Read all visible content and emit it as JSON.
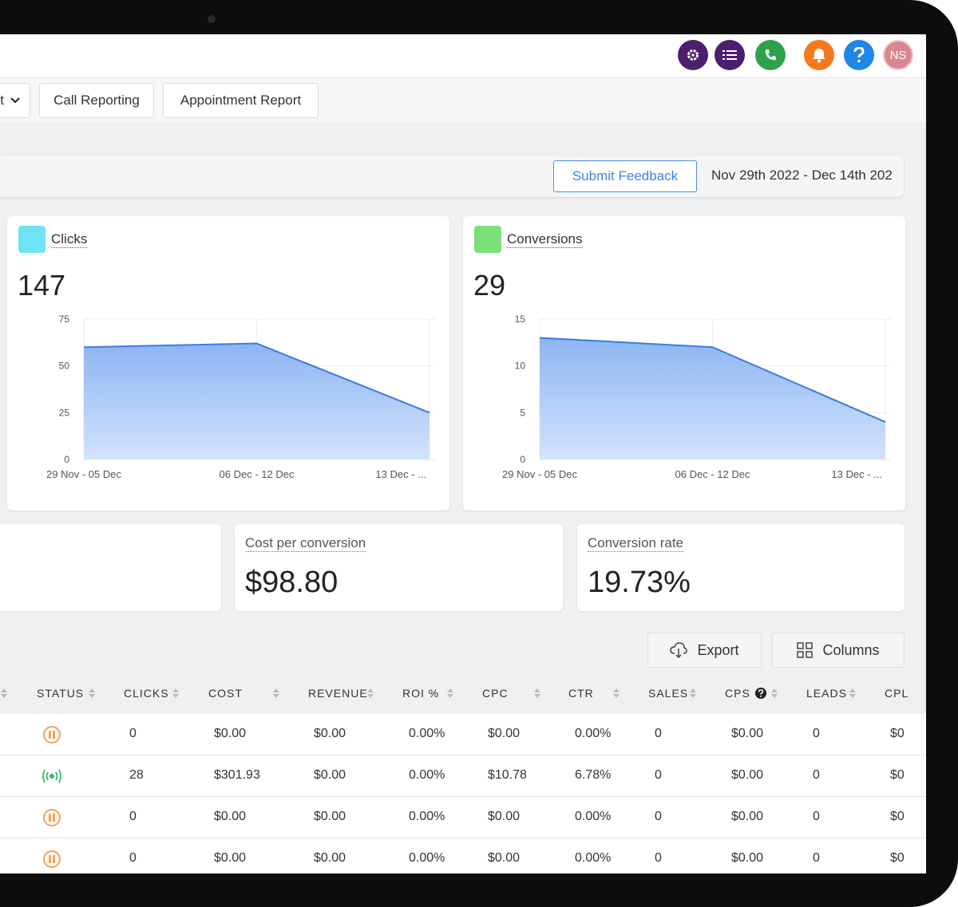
{
  "header": {
    "avatar": "NS"
  },
  "tabs": [
    "t",
    "Call Reporting",
    "Appointment Report"
  ],
  "toolbar": {
    "feedback_button": "Submit Feedback",
    "date_range": "Nov 29th 2022 - Dec 14th 202"
  },
  "chart_data": [
    {
      "type": "area",
      "title": "Clicks",
      "total": 147,
      "categories": [
        "29 Nov - 05 Dec",
        "06 Dec - 12 Dec",
        "13 Dec - ..."
      ],
      "values": [
        60,
        62,
        25
      ],
      "color": "#3a7be0",
      "icon_color": "#6fe3f5",
      "ylim": [
        0,
        75
      ],
      "yticks": [
        0,
        25,
        50,
        75
      ],
      "grid": true
    },
    {
      "type": "area",
      "title": "Conversions",
      "total": 29,
      "categories": [
        "29 Nov - 05 Dec",
        "06 Dec - 12 Dec",
        "13 Dec - ..."
      ],
      "values": [
        13,
        12,
        4
      ],
      "color": "#3a7be0",
      "icon_color": "#7be27a",
      "ylim": [
        0,
        15
      ],
      "yticks": [
        0,
        5,
        10,
        15
      ],
      "grid": true
    }
  ],
  "metrics": [
    {
      "label": "Cost per conversion",
      "value": "$98.80"
    },
    {
      "label": "Conversion rate",
      "value": "19.73%"
    }
  ],
  "actions": [
    "Export",
    "Columns"
  ],
  "table": {
    "columns": [
      "STATUS",
      "CLICKS",
      "COST",
      "REVENUE",
      "ROI %",
      "CPC",
      "CTR",
      "SALES",
      "CPS",
      "LEADS",
      "CPL"
    ],
    "status_icons": [
      "paused",
      "active",
      "paused",
      "paused"
    ],
    "rows": [
      [
        "0",
        "$0.00",
        "$0.00",
        "0.00%",
        "$0.00",
        "0.00%",
        "0",
        "$0.00",
        "0",
        "$0"
      ],
      [
        "28",
        "$301.93",
        "$0.00",
        "0.00%",
        "$10.78",
        "6.78%",
        "0",
        "$0.00",
        "0",
        "$0"
      ],
      [
        "0",
        "$0.00",
        "$0.00",
        "0.00%",
        "$0.00",
        "0.00%",
        "0",
        "$0.00",
        "0",
        "$0"
      ],
      [
        "0",
        "$0.00",
        "$0.00",
        "0.00%",
        "$0.00",
        "0.00%",
        "0",
        "$0.00",
        "0",
        "$0"
      ]
    ]
  }
}
